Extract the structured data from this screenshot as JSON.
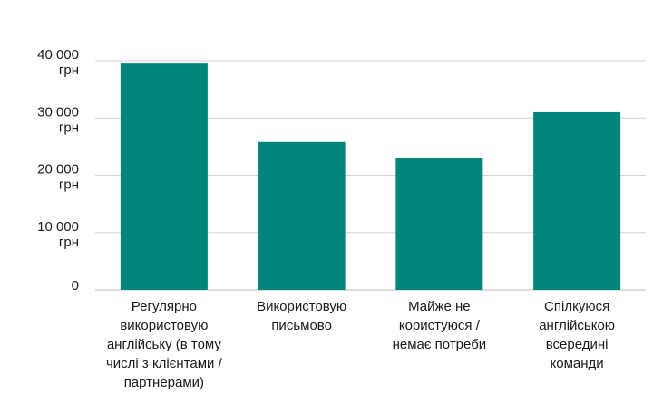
{
  "chart_data": {
    "type": "bar",
    "title": "",
    "xlabel": "",
    "ylabel": "",
    "ylim": [
      0,
      40000
    ],
    "grid": true,
    "color": "#00857a",
    "yticks": [
      {
        "value": 0,
        "lines": [
          "0"
        ]
      },
      {
        "value": 10000,
        "lines": [
          "10 000",
          "грн"
        ]
      },
      {
        "value": 20000,
        "lines": [
          "20 000",
          "грн"
        ]
      },
      {
        "value": 30000,
        "lines": [
          "30 000",
          "грн"
        ]
      },
      {
        "value": 40000,
        "lines": [
          "40 000",
          "грн"
        ]
      }
    ],
    "categories": [
      [
        "Регулярно",
        "використовую",
        "англійську (в тому",
        "числі з клієнтами /",
        "партнерами)"
      ],
      [
        "Використовую",
        "письмово"
      ],
      [
        "Майже не",
        "користуюся /",
        "немає потреби"
      ],
      [
        "Спілкуюся",
        "англійською",
        "всередині",
        "команди"
      ]
    ],
    "values": [
      39500,
      25800,
      23000,
      31000
    ]
  }
}
